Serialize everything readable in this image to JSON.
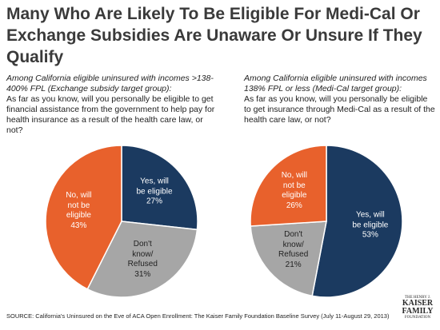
{
  "title": "Many Who Are Likely To Be Eligible For Medi-Cal Or Exchange Subsidies Are Unaware Or Unsure If They Qualify",
  "chart_data": [
    {
      "type": "pie",
      "subtitle": "Among California eligible uninsured with incomes >138-400% FPL (Exchange subsidy target group):",
      "question": "As far as you know, will you personally be eligible to get financial assistance from the government to help pay for health insurance as a result of the health care law, or not?",
      "categories": [
        "Yes, will be eligible",
        "Don't know/ Refused",
        "No, will not be eligible"
      ],
      "values": [
        27,
        31,
        43
      ],
      "value_labels": [
        "27%",
        "31%",
        "43%"
      ],
      "colors": [
        "#1b3a60",
        "#a6a6a6",
        "#e8612c"
      ]
    },
    {
      "type": "pie",
      "subtitle": "Among California eligible uninsured with incomes 138% FPL or less (Medi-Cal target group):",
      "question": "As far as you know, will you personally be eligible to get insurance through Medi-Cal as a result of the health care law, or not?",
      "categories": [
        "Yes, will be eligible",
        "Don't know/ Refused",
        "No, will not be eligible"
      ],
      "values": [
        53,
        21,
        26
      ],
      "value_labels": [
        "53%",
        "21%",
        "26%"
      ],
      "colors": [
        "#1b3a60",
        "#a6a6a6",
        "#e8612c"
      ]
    }
  ],
  "source": "SOURCE: California's Uninsured on the Eve of ACA Open Enrollment: The Kaiser Family Foundation Baseline Survey (July 11-August 29, 2013)",
  "logo": {
    "top": "THE HENRY J.",
    "line1": "KAISER",
    "line2": "FAMILY",
    "bottom": "FOUNDATION"
  }
}
